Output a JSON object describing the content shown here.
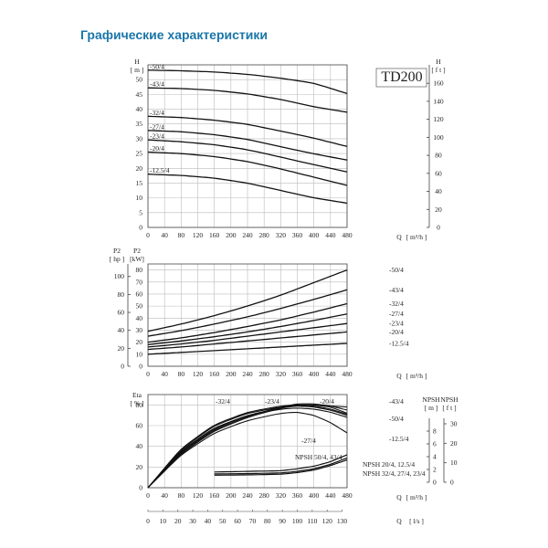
{
  "page_title": "Графические характеристики",
  "chart_data": [
    {
      "type": "line",
      "model_label": "TD200",
      "ylabel_left": "H",
      "yunit_left": "[ m ]",
      "ylabel_right": "H",
      "yunit_right": "[ f t ]",
      "xlabel": "Q",
      "xunit": "[ m³/h ]",
      "xlim": [
        0,
        480
      ],
      "ylim": [
        0,
        55
      ],
      "x_ticks": [
        "0",
        "40",
        "80",
        "120",
        "160",
        "200",
        "240",
        "280",
        "320",
        "360",
        "400",
        "440",
        "480"
      ],
      "y_ticks_left": [
        "0",
        "5",
        "10",
        "15",
        "20",
        "25",
        "30",
        "35",
        "40",
        "45",
        "50"
      ],
      "y_ticks_right": [
        "0",
        "20",
        "40",
        "60",
        "80",
        "100",
        "120",
        "140",
        "160"
      ],
      "x": [
        0,
        80,
        160,
        240,
        320,
        400,
        480
      ],
      "series": [
        {
          "name": "-50/4",
          "values": [
            53.2,
            53.0,
            52.6,
            51.8,
            50.5,
            48.8,
            45.3
          ]
        },
        {
          "name": "-43/4",
          "values": [
            47.2,
            47.0,
            46.4,
            45.2,
            43.3,
            40.8,
            39.0
          ]
        },
        {
          "name": "-32/4",
          "values": [
            37.6,
            37.2,
            36.3,
            34.9,
            32.6,
            30.2,
            27.4
          ]
        },
        {
          "name": "-27/4",
          "values": [
            32.8,
            32.4,
            31.4,
            29.8,
            27.3,
            24.9,
            22.8
          ]
        },
        {
          "name": "-23/4",
          "values": [
            29.6,
            29.0,
            28.0,
            26.3,
            23.8,
            21.2,
            18.8
          ]
        },
        {
          "name": "-20/4",
          "values": [
            25.5,
            25.0,
            24.0,
            22.3,
            19.8,
            17.0,
            14.2
          ]
        },
        {
          "name": "-12.5/4",
          "values": [
            18.0,
            17.6,
            16.7,
            15.0,
            12.5,
            10.0,
            8.2
          ]
        }
      ]
    },
    {
      "type": "line",
      "ylabel_left": "P2",
      "yunit_left": "[ hp ]",
      "ylabel_right": "P2",
      "yunit_right": "[kW]",
      "xlabel": "Q",
      "xunit": "[ m³/h ]",
      "xlim": [
        0,
        480
      ],
      "ylim": [
        0,
        85
      ],
      "x_ticks": [
        "0",
        "40",
        "80",
        "120",
        "160",
        "200",
        "240",
        "280",
        "320",
        "360",
        "400",
        "440",
        "480"
      ],
      "y_ticks_hp": [
        "0",
        "20",
        "40",
        "60",
        "80",
        "100"
      ],
      "y_ticks_kw": [
        "0",
        "10",
        "20",
        "30",
        "40",
        "50",
        "60",
        "70",
        "80"
      ],
      "x": [
        0,
        80,
        160,
        240,
        320,
        400,
        480
      ],
      "series": [
        {
          "name": "-50/4",
          "values": [
            29.0,
            35.0,
            42.0,
            50.0,
            59.0,
            69.5,
            80.0
          ]
        },
        {
          "name": "-43/4",
          "values": [
            25.0,
            29.5,
            35.0,
            41.0,
            48.0,
            55.5,
            63.5
          ]
        },
        {
          "name": "-32/4",
          "values": [
            20.0,
            23.5,
            28.0,
            33.0,
            38.5,
            45.0,
            52.0
          ]
        },
        {
          "name": "-27/4",
          "values": [
            18.0,
            21.0,
            24.5,
            28.5,
            33.0,
            38.0,
            43.5
          ]
        },
        {
          "name": "-23/4",
          "values": [
            16.0,
            18.5,
            21.5,
            25.0,
            28.5,
            32.0,
            35.5
          ]
        },
        {
          "name": "-20/4",
          "values": [
            14.0,
            16.0,
            18.5,
            21.0,
            23.5,
            26.0,
            28.5
          ]
        },
        {
          "name": "-12.5/4",
          "values": [
            10.0,
            11.5,
            13.0,
            14.5,
            16.0,
            17.5,
            19.0
          ]
        }
      ]
    },
    {
      "type": "line",
      "ylabel_left": "Eta",
      "yunit_left": "[ % ]",
      "ylabel_npsh_m": "NPSH",
      "yunit_npsh_m": "[ m ]",
      "ylabel_npsh_ft": "NPSH",
      "yunit_npsh_ft": "[ f t ]",
      "xlabel": "Q",
      "xunit": "[ m³/h ]",
      "xlabel_2": "Q",
      "xunit_2": "[ l/s ]",
      "xlim": [
        0,
        480
      ],
      "ylim": [
        0,
        90
      ],
      "x_ticks": [
        "0",
        "40",
        "80",
        "120",
        "160",
        "200",
        "240",
        "280",
        "320",
        "360",
        "400",
        "440",
        "480"
      ],
      "x_ticks_ls": [
        "0",
        "10",
        "20",
        "30",
        "40",
        "50",
        "60",
        "70",
        "80",
        "90",
        "100",
        "110",
        "120",
        "130"
      ],
      "y_ticks_left": [
        "0",
        "20",
        "40",
        "60",
        "80"
      ],
      "y_ticks_npsh_m": [
        "0",
        "2",
        "4",
        "6",
        "8"
      ],
      "y_ticks_npsh_ft": [
        "0",
        "10",
        "20",
        "30"
      ],
      "eta_x": [
        0,
        80,
        160,
        240,
        320,
        360,
        400,
        440,
        480
      ],
      "eta_series": [
        {
          "name": "-32/4",
          "values": [
            0,
            38,
            61,
            73,
            79,
            80,
            79,
            76,
            71
          ]
        },
        {
          "name": "-23/4",
          "values": [
            0,
            37,
            60,
            72,
            78,
            79,
            78,
            75,
            70
          ]
        },
        {
          "name": "-20/4",
          "values": [
            0,
            36,
            58,
            70,
            76,
            77,
            76,
            73,
            68
          ]
        },
        {
          "name": "-27/4",
          "values": [
            0,
            35,
            57,
            70,
            77,
            79,
            80,
            79,
            78
          ]
        },
        {
          "name": "-43/4",
          "values": [
            0,
            34,
            56,
            69,
            78,
            81,
            81,
            79,
            75
          ]
        },
        {
          "name": "-50/4",
          "values": [
            0,
            33,
            55,
            68,
            77,
            80,
            80,
            78,
            72
          ]
        },
        {
          "name": "-12.5/4",
          "values": [
            0,
            32,
            53,
            65,
            72,
            73,
            70,
            63,
            53
          ]
        }
      ],
      "npsh_x": [
        160,
        240,
        320,
        360,
        400,
        440,
        480
      ],
      "npsh_series": [
        {
          "name": "NPSH 50/4, 43/4",
          "values": [
            1.6,
            1.7,
            1.8,
            2.1,
            2.5,
            3.2,
            4.3
          ]
        },
        {
          "name": "NPSH 20/4, 12.5/4",
          "values": [
            1.3,
            1.35,
            1.45,
            1.7,
            2.1,
            2.8,
            3.8
          ]
        },
        {
          "name": "NPSH 32/4, 27/4, 23/4",
          "values": [
            1.1,
            1.15,
            1.25,
            1.5,
            1.9,
            2.6,
            3.5
          ]
        }
      ]
    }
  ]
}
